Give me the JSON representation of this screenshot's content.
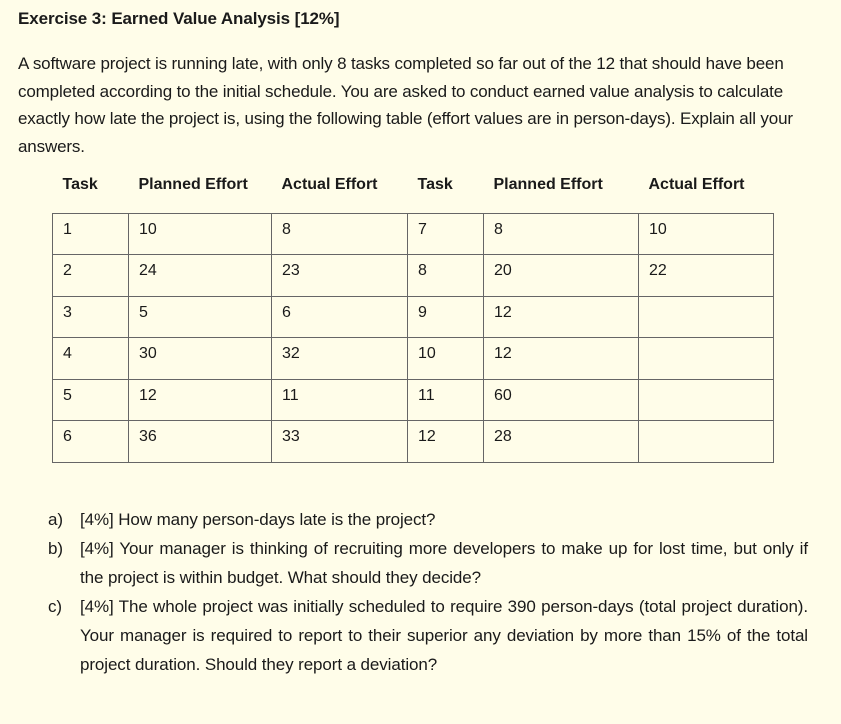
{
  "title": "Exercise 3: Earned Value Analysis [12%]",
  "intro": "A software project is running late, with only 8 tasks completed so far out of the 12 that should have been completed according to the initial schedule. You are asked to conduct earned value analysis to calculate exactly how late the project is, using the following table (effort values are in person-days). Explain all your answers.",
  "table": {
    "headers": [
      "Task",
      "Planned Effort",
      "Actual Effort",
      "Task",
      "Planned Effort",
      "Actual Effort"
    ],
    "rows": [
      [
        "1",
        "10",
        "8",
        "7",
        "8",
        "10"
      ],
      [
        "2",
        "24",
        "23",
        "8",
        "20",
        "22"
      ],
      [
        "3",
        "5",
        "6",
        "9",
        "12",
        ""
      ],
      [
        "4",
        "30",
        "32",
        "10",
        "12",
        ""
      ],
      [
        "5",
        "12",
        "11",
        "11",
        "60",
        ""
      ],
      [
        "6",
        "36",
        "33",
        "12",
        "28",
        ""
      ]
    ]
  },
  "questions": [
    {
      "label": "a)",
      "text": "[4%] How many person-days late is the project?"
    },
    {
      "label": "b)",
      "text": "[4%] Your manager is thinking of recruiting more developers to make up for lost time, but only if the project is within budget. What should they decide?"
    },
    {
      "label": "c)",
      "text": "[4%] The whole project was initially scheduled to require 390 person-days (total project duration). Your manager is required to report to their superior any deviation by more than 15% of the total project duration. Should they report a deviation?"
    }
  ]
}
